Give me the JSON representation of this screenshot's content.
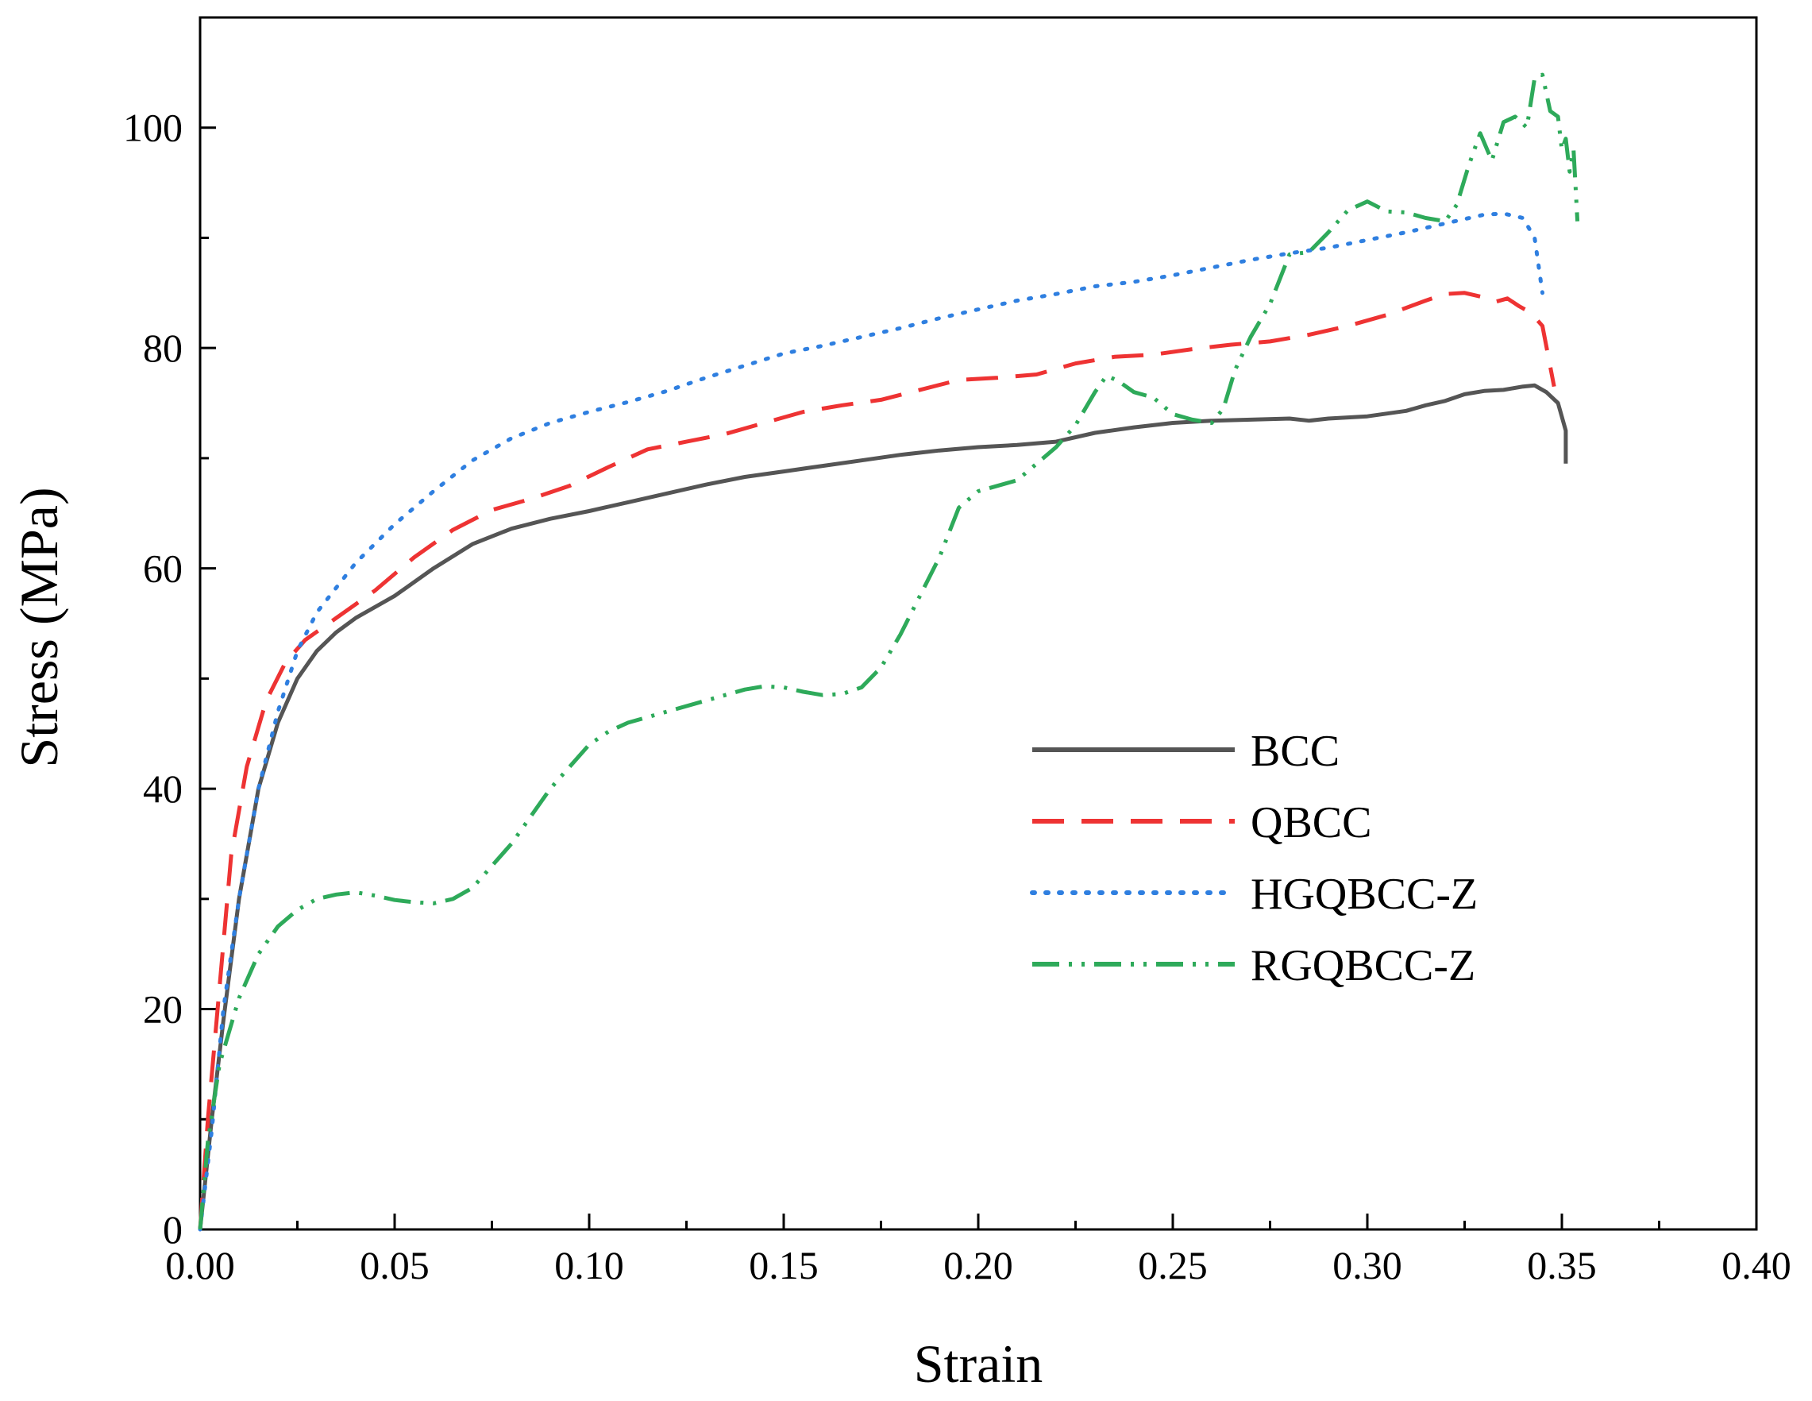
{
  "chart_data": {
    "type": "line",
    "title": "",
    "xlabel": "Strain",
    "ylabel": "Stress (MPa)",
    "xlim": [
      0,
      0.4
    ],
    "ylim": [
      0,
      110
    ],
    "xticks": [
      0,
      0.05,
      0.1,
      0.15,
      0.2,
      0.25,
      0.3,
      0.35,
      0.4
    ],
    "xtick_labels": [
      "0.00",
      "0.05",
      "0.10",
      "0.15",
      "0.20",
      "0.25",
      "0.30",
      "0.35",
      "0.40"
    ],
    "yticks": [
      0,
      20,
      40,
      60,
      80,
      100
    ],
    "ytick_labels": [
      "0",
      "20",
      "40",
      "60",
      "80",
      "100"
    ],
    "grid": false,
    "legend_position": "center-right",
    "series": [
      {
        "name": "BCC",
        "color": "#555555",
        "style": "solid",
        "x": [
          0,
          0.003,
          0.006,
          0.01,
          0.015,
          0.02,
          0.025,
          0.03,
          0.035,
          0.04,
          0.05,
          0.06,
          0.07,
          0.08,
          0.09,
          0.1,
          0.11,
          0.12,
          0.13,
          0.14,
          0.15,
          0.16,
          0.17,
          0.18,
          0.19,
          0.2,
          0.21,
          0.22,
          0.23,
          0.24,
          0.25,
          0.26,
          0.27,
          0.28,
          0.285,
          0.29,
          0.3,
          0.31,
          0.315,
          0.32,
          0.325,
          0.33,
          0.335,
          0.34,
          0.343,
          0.346,
          0.349,
          0.351,
          0.351
        ],
        "values": [
          0,
          10,
          19,
          30,
          40,
          46,
          50,
          52.5,
          54.2,
          55.5,
          57.5,
          60,
          62.2,
          63.6,
          64.5,
          65.2,
          66,
          66.8,
          67.6,
          68.3,
          68.8,
          69.3,
          69.8,
          70.3,
          70.7,
          71.0,
          71.2,
          71.5,
          72.3,
          72.8,
          73.2,
          73.4,
          73.5,
          73.6,
          73.4,
          73.6,
          73.8,
          74.3,
          74.8,
          75.2,
          75.8,
          76.1,
          76.2,
          76.5,
          76.6,
          76.0,
          75.0,
          72.5,
          69.5
        ]
      },
      {
        "name": "QBCC",
        "color": "#ee3333",
        "style": "dashed",
        "x": [
          0,
          0.002,
          0.005,
          0.008,
          0.012,
          0.017,
          0.022,
          0.027,
          0.035,
          0.045,
          0.055,
          0.065,
          0.075,
          0.085,
          0.095,
          0.105,
          0.115,
          0.125,
          0.135,
          0.145,
          0.155,
          0.165,
          0.175,
          0.185,
          0.195,
          0.205,
          0.215,
          0.225,
          0.235,
          0.245,
          0.255,
          0.265,
          0.275,
          0.285,
          0.295,
          0.305,
          0.315,
          0.32,
          0.325,
          0.33,
          0.333,
          0.336,
          0.339,
          0.342,
          0.345,
          0.348
        ],
        "values": [
          0,
          10,
          22,
          34,
          42,
          48,
          51.5,
          53.5,
          55.5,
          58,
          61,
          63.5,
          65.3,
          66.3,
          67.5,
          69.2,
          70.8,
          71.5,
          72.2,
          73.2,
          74.2,
          74.8,
          75.3,
          76.2,
          77.1,
          77.3,
          77.6,
          78.6,
          79.2,
          79.4,
          79.9,
          80.3,
          80.6,
          81.2,
          82.0,
          83.0,
          84.3,
          84.9,
          85.0,
          84.6,
          84.2,
          84.5,
          83.8,
          83.2,
          82.0,
          76.5
        ]
      },
      {
        "name": "HGQBCC-Z",
        "color": "#2f7fe0",
        "style": "dotted",
        "x": [
          0,
          0.003,
          0.006,
          0.01,
          0.015,
          0.02,
          0.025,
          0.03,
          0.04,
          0.05,
          0.06,
          0.07,
          0.08,
          0.09,
          0.1,
          0.11,
          0.12,
          0.13,
          0.14,
          0.15,
          0.16,
          0.17,
          0.18,
          0.19,
          0.2,
          0.21,
          0.22,
          0.23,
          0.24,
          0.25,
          0.26,
          0.27,
          0.28,
          0.29,
          0.3,
          0.31,
          0.32,
          0.33,
          0.335,
          0.34,
          0.343,
          0.345
        ],
        "values": [
          0,
          9,
          20,
          30,
          40,
          47,
          52.5,
          56,
          60.5,
          64,
          67,
          69.8,
          71.8,
          73.2,
          74.2,
          75.1,
          76.1,
          77.3,
          78.4,
          79.5,
          80.2,
          81.0,
          81.8,
          82.7,
          83.5,
          84.3,
          84.9,
          85.6,
          86.0,
          86.6,
          87.3,
          88.0,
          88.6,
          89.1,
          89.8,
          90.5,
          91.3,
          92.1,
          92.2,
          91.8,
          90.0,
          85.0
        ]
      },
      {
        "name": "RGQBCC-Z",
        "color": "#2eaa5a",
        "style": "dash-dot-dot",
        "x": [
          0,
          0.002,
          0.005,
          0.01,
          0.015,
          0.02,
          0.025,
          0.03,
          0.035,
          0.04,
          0.045,
          0.05,
          0.055,
          0.06,
          0.065,
          0.07,
          0.075,
          0.08,
          0.085,
          0.09,
          0.095,
          0.1,
          0.105,
          0.11,
          0.12,
          0.13,
          0.14,
          0.145,
          0.15,
          0.155,
          0.16,
          0.165,
          0.17,
          0.175,
          0.18,
          0.19,
          0.195,
          0.2,
          0.21,
          0.22,
          0.225,
          0.23,
          0.233,
          0.236,
          0.24,
          0.245,
          0.25,
          0.255,
          0.26,
          0.263,
          0.266,
          0.27,
          0.275,
          0.28,
          0.285,
          0.29,
          0.295,
          0.3,
          0.305,
          0.31,
          0.315,
          0.32,
          0.323,
          0.326,
          0.329,
          0.332,
          0.335,
          0.338,
          0.341,
          0.343,
          0.345,
          0.347,
          0.349,
          0.35,
          0.351,
          0.352,
          0.353,
          0.354
        ],
        "values": [
          0,
          8,
          15,
          21,
          25,
          27.5,
          29.0,
          30.0,
          30.4,
          30.6,
          30.3,
          29.9,
          29.7,
          29.6,
          30.0,
          31.0,
          33.0,
          35.0,
          37.5,
          40.0,
          42.0,
          44.0,
          45.2,
          46.0,
          47.0,
          48.0,
          49.0,
          49.3,
          49.2,
          48.8,
          48.5,
          48.6,
          49.2,
          51.0,
          54.0,
          61.0,
          65.5,
          67.0,
          68.0,
          71.0,
          73.0,
          76.0,
          77.5,
          77.0,
          76.0,
          75.5,
          74.0,
          73.5,
          73.2,
          74.5,
          78.0,
          81.0,
          84.0,
          88.5,
          88.7,
          90.5,
          92.5,
          93.3,
          92.4,
          92.3,
          91.8,
          91.5,
          93.0,
          96.5,
          99.5,
          97.0,
          100.5,
          101.0,
          100.0,
          104.5,
          104.8,
          101.5,
          101.0,
          98.0,
          99.0,
          96.0,
          98.0,
          91.5
        ]
      }
    ]
  }
}
